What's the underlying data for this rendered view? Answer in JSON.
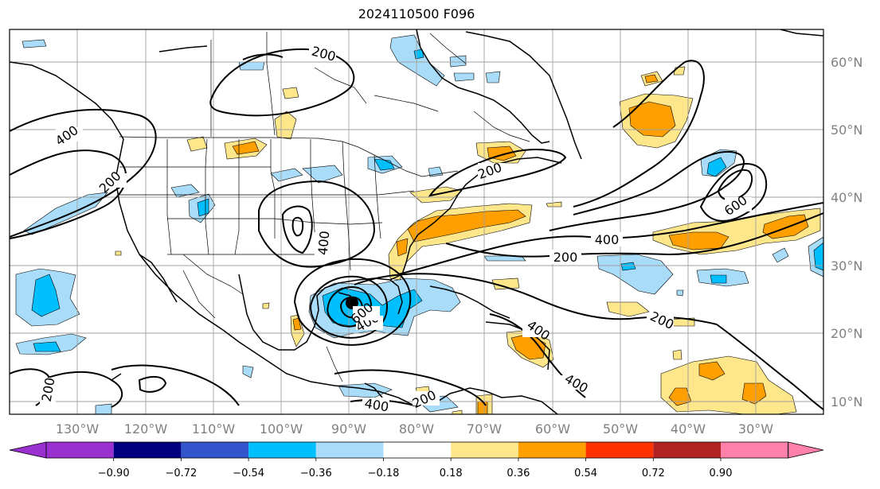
{
  "title": "2024110500 F096",
  "map": {
    "lon_labels": [
      "130°W",
      "120°W",
      "110°W",
      "100°W",
      "90°W",
      "80°W",
      "70°W",
      "60°W",
      "50°W",
      "40°W",
      "30°W"
    ],
    "lat_labels": [
      "60°N",
      "50°N",
      "40°N",
      "30°N",
      "20°N",
      "10°N"
    ],
    "contour_labels": [
      "200",
      "400",
      "200",
      "400",
      "200",
      "400",
      "600",
      "400",
      "200",
      "600",
      "400",
      "200",
      "200",
      "400",
      "400",
      "200",
      "400",
      "200"
    ],
    "storm_center": "black-dot"
  },
  "colorbar": {
    "ticks": [
      "−0.90",
      "−0.72",
      "−0.54",
      "−0.36",
      "−0.18",
      "0.18",
      "0.36",
      "0.54",
      "0.72",
      "0.90"
    ],
    "colors": [
      "#9b30d0",
      "#000080",
      "#3355cc",
      "#00bfff",
      "#a8dcf8",
      "#ffffff",
      "#fee68a",
      "#ff9f00",
      "#ff3300",
      "#b22222",
      "#ff80aa"
    ]
  },
  "fill_colors": {
    "neg_light": "#a8dcf8",
    "neg_mid": "#00bfff",
    "pos_light": "#fee68a",
    "pos_mid": "#ff9f00"
  }
}
